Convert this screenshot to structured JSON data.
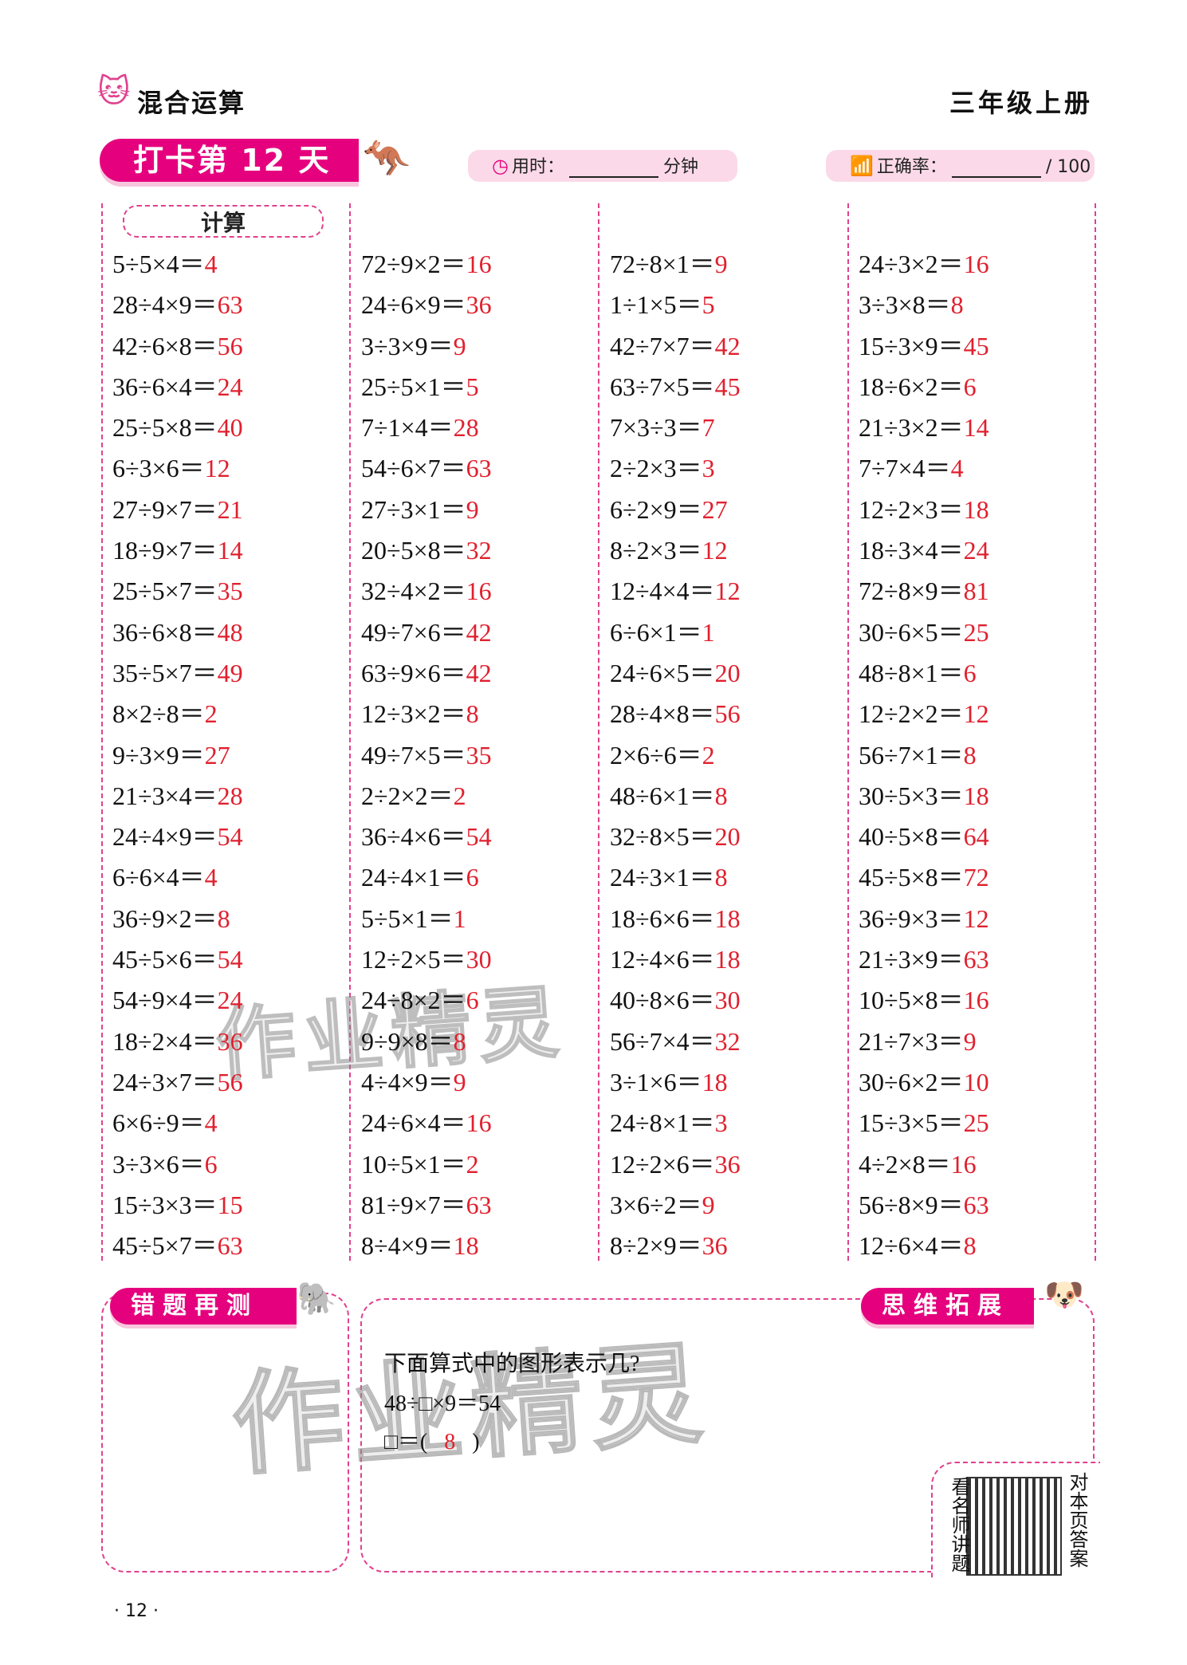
{
  "header": {
    "section_title": "混合运算",
    "grade": "三年级上册"
  },
  "banner": {
    "title": "打卡第 12 天"
  },
  "time_pill": {
    "label": "用时：",
    "unit": "分钟"
  },
  "accuracy_pill": {
    "label": "正确率：",
    "total": "/ 100"
  },
  "calc_tag": "计算",
  "columns": [
    [
      [
        "5÷5×4＝",
        "4"
      ],
      [
        "28÷4×9＝",
        "63"
      ],
      [
        "42÷6×8＝",
        "56"
      ],
      [
        "36÷6×4＝",
        "24"
      ],
      [
        "25÷5×8＝",
        "40"
      ],
      [
        "6÷3×6＝",
        "12"
      ],
      [
        "27÷9×7＝",
        "21"
      ],
      [
        "18÷9×7＝",
        "14"
      ],
      [
        "25÷5×7＝",
        "35"
      ],
      [
        "36÷6×8＝",
        "48"
      ],
      [
        "35÷5×7＝",
        "49"
      ],
      [
        "8×2÷8＝",
        "2"
      ],
      [
        "9÷3×9＝",
        "27"
      ],
      [
        "21÷3×4＝",
        "28"
      ],
      [
        "24÷4×9＝",
        "54"
      ],
      [
        "6÷6×4＝",
        "4"
      ],
      [
        "36÷9×2＝",
        "8"
      ],
      [
        "45÷5×6＝",
        "54"
      ],
      [
        "54÷9×4＝",
        "24"
      ],
      [
        "18÷2×4＝",
        "36"
      ],
      [
        "24÷3×7＝",
        "56"
      ],
      [
        "6×6÷9＝",
        "4"
      ],
      [
        "3÷3×6＝",
        "6"
      ],
      [
        "15÷3×3＝",
        "15"
      ],
      [
        "45÷5×7＝",
        "63"
      ]
    ],
    [
      [
        "72÷9×2＝",
        "16"
      ],
      [
        "24÷6×9＝",
        "36"
      ],
      [
        "3÷3×9＝",
        "9"
      ],
      [
        "25÷5×1＝",
        "5"
      ],
      [
        "7÷1×4＝",
        "28"
      ],
      [
        "54÷6×7＝",
        "63"
      ],
      [
        "27÷3×1＝",
        "9"
      ],
      [
        "20÷5×8＝",
        "32"
      ],
      [
        "32÷4×2＝",
        "16"
      ],
      [
        "49÷7×6＝",
        "42"
      ],
      [
        "63÷9×6＝",
        "42"
      ],
      [
        "12÷3×2＝",
        "8"
      ],
      [
        "49÷7×5＝",
        "35"
      ],
      [
        "2÷2×2＝",
        "2"
      ],
      [
        "36÷4×6＝",
        "54"
      ],
      [
        "24÷4×1＝",
        "6"
      ],
      [
        "5÷5×1＝",
        "1"
      ],
      [
        "12÷2×5＝",
        "30"
      ],
      [
        "24÷8×2＝",
        "6"
      ],
      [
        "9÷9×8＝",
        "8"
      ],
      [
        "4÷4×9＝",
        "9"
      ],
      [
        "24÷6×4＝",
        "16"
      ],
      [
        "10÷5×1＝",
        "2"
      ],
      [
        "81÷9×7＝",
        "63"
      ],
      [
        "8÷4×9＝",
        "18"
      ]
    ],
    [
      [
        "72÷8×1＝",
        "9"
      ],
      [
        "1÷1×5＝",
        "5"
      ],
      [
        "42÷7×7＝",
        "42"
      ],
      [
        "63÷7×5＝",
        "45"
      ],
      [
        "7×3÷3＝",
        "7"
      ],
      [
        "2÷2×3＝",
        "3"
      ],
      [
        "6÷2×9＝",
        "27"
      ],
      [
        "8÷2×3＝",
        "12"
      ],
      [
        "12÷4×4＝",
        "12"
      ],
      [
        "6÷6×1＝",
        "1"
      ],
      [
        "24÷6×5＝",
        "20"
      ],
      [
        "28÷4×8＝",
        "56"
      ],
      [
        "2×6÷6＝",
        "2"
      ],
      [
        "48÷6×1＝",
        "8"
      ],
      [
        "32÷8×5＝",
        "20"
      ],
      [
        "24÷3×1＝",
        "8"
      ],
      [
        "18÷6×6＝",
        "18"
      ],
      [
        "12÷4×6＝",
        "18"
      ],
      [
        "40÷8×6＝",
        "30"
      ],
      [
        "56÷7×4＝",
        "32"
      ],
      [
        "3÷1×6＝",
        "18"
      ],
      [
        "24÷8×1＝",
        "3"
      ],
      [
        "12÷2×6＝",
        "36"
      ],
      [
        "3×6÷2＝",
        "9"
      ],
      [
        "8÷2×9＝",
        "36"
      ]
    ],
    [
      [
        "24÷3×2＝",
        "16"
      ],
      [
        "3÷3×8＝",
        "8"
      ],
      [
        "15÷3×9＝",
        "45"
      ],
      [
        "18÷6×2＝",
        "6"
      ],
      [
        "21÷3×2＝",
        "14"
      ],
      [
        "7÷7×4＝",
        "4"
      ],
      [
        "12÷2×3＝",
        "18"
      ],
      [
        "18÷3×4＝",
        "24"
      ],
      [
        "72÷8×9＝",
        "81"
      ],
      [
        "30÷6×5＝",
        "25"
      ],
      [
        "48÷8×1＝",
        "6"
      ],
      [
        "12÷2×2＝",
        "12"
      ],
      [
        "56÷7×1＝",
        "8"
      ],
      [
        "30÷5×3＝",
        "18"
      ],
      [
        "40÷5×8＝",
        "64"
      ],
      [
        "45÷5×8＝",
        "72"
      ],
      [
        "36÷9×3＝",
        "12"
      ],
      [
        "21÷3×9＝",
        "63"
      ],
      [
        "10÷5×8＝",
        "16"
      ],
      [
        "21÷7×3＝",
        "9"
      ],
      [
        "30÷6×2＝",
        "10"
      ],
      [
        "15÷3×5＝",
        "25"
      ],
      [
        "4÷2×8＝",
        "16"
      ],
      [
        "56÷8×9＝",
        "63"
      ],
      [
        "12÷6×4＝",
        "8"
      ]
    ]
  ],
  "retest": {
    "tag": "错题再测"
  },
  "extension": {
    "tag": "思维拓展",
    "question": "下面算式中的图形表示几?",
    "equation": "48÷□×9＝54",
    "answer_prefix": "□＝(",
    "answer": "8",
    "answer_suffix": ")"
  },
  "qr": {
    "left_text": "看名师讲题",
    "right_text": "对本页答案"
  },
  "watermark": "作业精灵",
  "page_number": "· 12 ·",
  "colors": {
    "accent": "#e5007e",
    "answer": "#e0202e",
    "pill": "#fbd9e8"
  }
}
